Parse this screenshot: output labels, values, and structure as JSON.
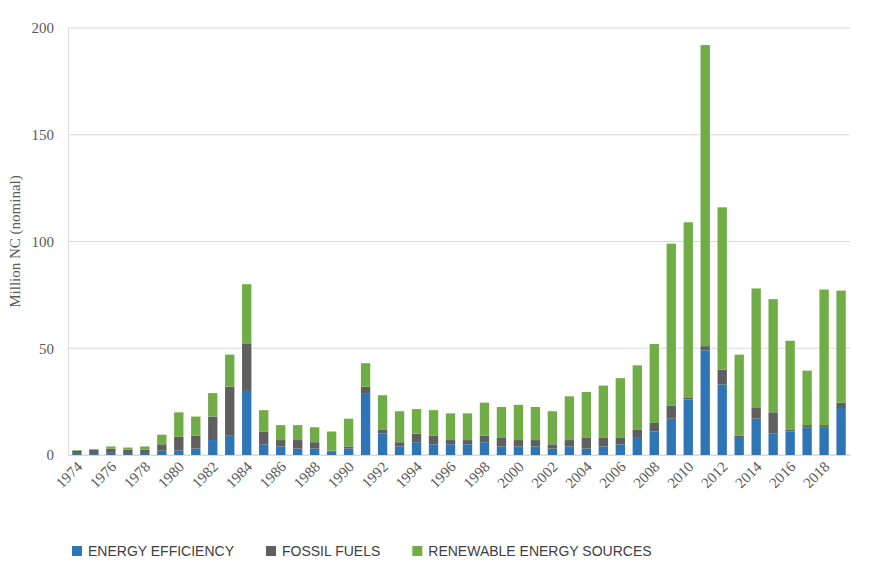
{
  "chart_data": {
    "type": "bar",
    "stacked": true,
    "ylabel": "Million NC (nominal)",
    "categories": [
      "1974",
      null,
      "1976",
      null,
      "1978",
      null,
      "1980",
      null,
      "1982",
      null,
      "1984",
      null,
      "1986",
      null,
      "1988",
      null,
      "1990",
      null,
      "1992",
      null,
      "1994",
      null,
      "1996",
      null,
      "1998",
      null,
      "2000",
      null,
      "2002",
      null,
      "2004",
      null,
      "2006",
      null,
      "2008",
      null,
      "2010",
      null,
      "2012",
      null,
      "2014",
      null,
      "2016",
      null,
      "2018",
      null
    ],
    "series": [
      {
        "name": "ENERGY EFFICIENCY",
        "color": "#2e75b6",
        "values": [
          0.5,
          0.5,
          1,
          0.5,
          0.5,
          2,
          2,
          3,
          7,
          9,
          30,
          5,
          4,
          3,
          3,
          1.5,
          3,
          29,
          10,
          4,
          6,
          5,
          5,
          5,
          6,
          4,
          4,
          4,
          3,
          4,
          3,
          4,
          5,
          8,
          11,
          17,
          26,
          49,
          33,
          8,
          17,
          10,
          11,
          13,
          13,
          22
        ]
      },
      {
        "name": "FOSSIL FUELS",
        "color": "#5f5f5f",
        "values": [
          1.5,
          2,
          2,
          2,
          2,
          3,
          6.5,
          6,
          11,
          23,
          22,
          6,
          3,
          4,
          3,
          0.5,
          1,
          3,
          2,
          2,
          4,
          4,
          2,
          2,
          3,
          4,
          3,
          3,
          2,
          3,
          5,
          4,
          3,
          4,
          4,
          6,
          1,
          2,
          7,
          1,
          5,
          10,
          1,
          1,
          1,
          2.5
        ]
      },
      {
        "name": "RENEWABLE ENERGY SOURCES",
        "color": "#70ad47",
        "values": [
          0.3,
          0.3,
          1,
          1,
          1.5,
          4.5,
          11.5,
          9,
          11,
          15,
          28,
          10,
          7,
          7,
          7,
          9,
          13,
          11,
          16,
          14.5,
          11.5,
          12,
          12.5,
          12.5,
          15.5,
          14.5,
          16.5,
          15.5,
          15.5,
          20.5,
          21.5,
          24.5,
          28,
          30,
          37,
          76,
          82,
          141,
          76,
          38,
          56,
          53,
          41.5,
          25.5,
          63.5,
          52.5
        ]
      }
    ],
    "ylim": [
      0,
      200
    ],
    "yticks": [
      0,
      50,
      100,
      150,
      200
    ],
    "grid": true,
    "legend": "bottom"
  }
}
